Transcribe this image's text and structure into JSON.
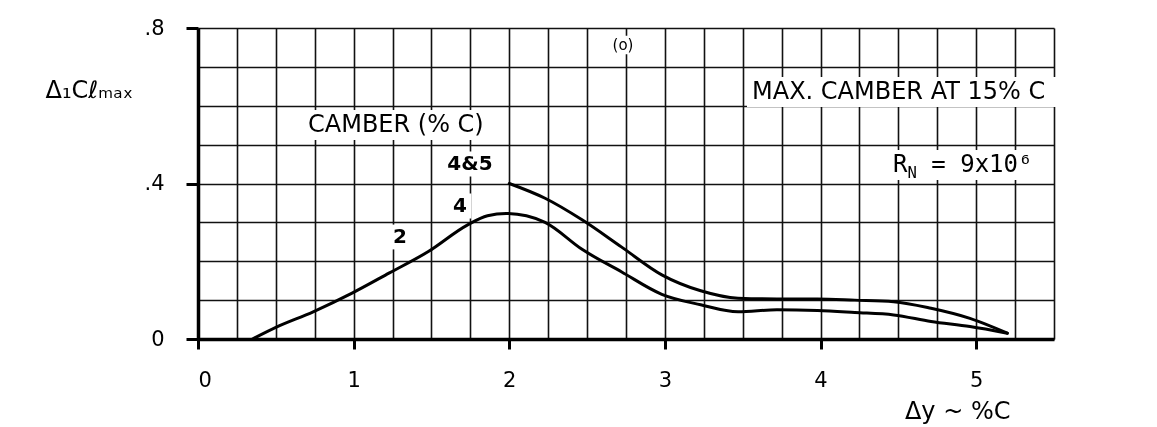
{
  "chart_data": {
    "type": "line",
    "xlabel": "Δy ~ %C",
    "ylabel": "Δ₁Cℓₘₐₓ",
    "xlim": [
      0,
      5.5
    ],
    "ylim": [
      0,
      0.8
    ],
    "xticks": [
      0,
      {
        "value": 0.25,
        "label": null
      },
      {
        "value": 0.5,
        "label": null
      },
      {
        "value": 0.75,
        "label": null
      },
      1,
      {
        "value": 1.25,
        "label": null
      },
      {
        "value": 1.5,
        "label": null
      },
      {
        "value": 1.75,
        "label": null
      },
      2,
      {
        "value": 2.25,
        "label": null
      },
      {
        "value": 2.5,
        "label": null
      },
      {
        "value": 2.75,
        "label": null
      },
      3,
      {
        "value": 3.25,
        "label": null
      },
      {
        "value": 3.5,
        "label": null
      },
      {
        "value": 3.75,
        "label": null
      },
      4,
      {
        "value": 4.25,
        "label": null
      },
      {
        "value": 4.5,
        "label": null
      },
      {
        "value": 4.75,
        "label": null
      },
      5,
      {
        "value": 5.25,
        "label": null
      },
      {
        "value": 5.5,
        "label": null
      }
    ],
    "yticks": [
      0,
      {
        "value": 0.1,
        "label": null
      },
      {
        "value": 0.2,
        "label": null
      },
      {
        "value": 0.3,
        "label": null
      },
      {
        "value": 0.4,
        "label": ".4"
      },
      {
        "value": 0.5,
        "label": null
      },
      {
        "value": 0.6,
        "label": null
      },
      {
        "value": 0.7,
        "label": null
      },
      {
        "value": 0.8,
        "label": ".8"
      }
    ],
    "grid": true,
    "series": [
      {
        "color": "#000000",
        "x": [
          0.35,
          0.5,
          0.74,
          0.99,
          1.23,
          1.48,
          1.73,
          1.86,
          1.98,
          2.11,
          2.23,
          2.47,
          2.72,
          2.98,
          3.23,
          3.47,
          3.72,
          3.98,
          4.22,
          4.47,
          4.71,
          4.96,
          5.2
        ],
        "values": [
          0,
          0.03,
          0.07,
          0.118,
          0.17,
          0.225,
          0.293,
          0.317,
          0.323,
          0.317,
          0.3,
          0.23,
          0.173,
          0.115,
          0.088,
          0.07,
          0.075,
          0.073,
          0.068,
          0.062,
          0.045,
          0.032,
          0.015
        ]
      },
      {
        "color": "#000000",
        "x": [
          2,
          2.23,
          2.47,
          2.72,
          2.98,
          3.23,
          3.47,
          3.72,
          3.98,
          4.22,
          4.47,
          4.71,
          4.96,
          5.2
        ],
        "values": [
          0.4,
          0.362,
          0.306,
          0.237,
          0.165,
          0.124,
          0.105,
          0.103,
          0.103,
          0.1,
          0.096,
          0.079,
          0.053,
          0.015
        ]
      }
    ],
    "annotations": [
      "(o)",
      "MAX. CAMBER AT 15% C",
      "CAMBER (% C)",
      "R$_{N}$ = 9x10⁶",
      "4&5",
      "4",
      "2"
    ]
  }
}
